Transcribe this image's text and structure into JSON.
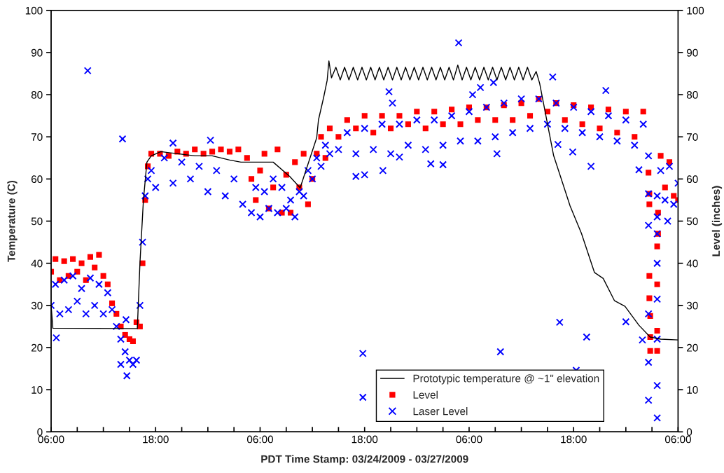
{
  "chart_data": {
    "type": "scatter",
    "xlabel": "PDT Time Stamp: 03/24/2009 - 03/27/2009",
    "ylabel": "Temperature (C)",
    "y2label": "Level (inches)",
    "xlim": [
      "2009-03-24T06:00",
      "2009-03-27T06:00"
    ],
    "xticks": [
      {
        "value": "2009-03-24T06:00",
        "label": "06:00"
      },
      {
        "value": "2009-03-24T09:00",
        "label": null
      },
      {
        "value": "2009-03-24T12:00",
        "label": null
      },
      {
        "value": "2009-03-24T15:00",
        "label": null
      },
      {
        "value": "2009-03-24T18:00",
        "label": "18:00"
      },
      {
        "value": "2009-03-24T21:00",
        "label": null
      },
      {
        "value": "2009-03-25T00:00",
        "label": null
      },
      {
        "value": "2009-03-25T03:00",
        "label": null
      },
      {
        "value": "2009-03-25T06:00",
        "label": "06:00"
      },
      {
        "value": "2009-03-25T09:00",
        "label": null
      },
      {
        "value": "2009-03-25T12:00",
        "label": null
      },
      {
        "value": "2009-03-25T15:00",
        "label": null
      },
      {
        "value": "2009-03-25T18:00",
        "label": "18:00"
      },
      {
        "value": "2009-03-25T21:00",
        "label": null
      },
      {
        "value": "2009-03-26T00:00",
        "label": null
      },
      {
        "value": "2009-03-26T03:00",
        "label": null
      },
      {
        "value": "2009-03-26T06:00",
        "label": "06:00"
      },
      {
        "value": "2009-03-26T09:00",
        "label": null
      },
      {
        "value": "2009-03-26T12:00",
        "label": null
      },
      {
        "value": "2009-03-26T15:00",
        "label": null
      },
      {
        "value": "2009-03-26T18:00",
        "label": "18:00"
      },
      {
        "value": "2009-03-26T21:00",
        "label": null
      },
      {
        "value": "2009-03-27T00:00",
        "label": null
      },
      {
        "value": "2009-03-27T03:00",
        "label": null
      },
      {
        "value": "2009-03-27T06:00",
        "label": "06:00"
      }
    ],
    "ylim": [
      0,
      100
    ],
    "yticks": [
      0,
      10,
      20,
      30,
      40,
      50,
      60,
      70,
      80,
      90,
      100
    ],
    "y2lim": [
      0,
      100
    ],
    "y2ticks": [
      0,
      10,
      20,
      30,
      40,
      50,
      60,
      70,
      80,
      90,
      100
    ],
    "grid": false,
    "legend": "bottom right",
    "series": [
      {
        "name": "Prototypic temperature @ ~1\" elevation",
        "type": "line",
        "color": "#000000",
        "marker": "none",
        "line_style": "solid",
        "x": [
          "2009-03-24T06:00",
          "2009-03-24T06:12",
          "2009-03-24T15:54",
          "2009-03-24T16:12",
          "2009-03-24T16:36",
          "2009-03-24T17:00",
          "2009-03-24T17:30",
          "2009-03-24T18:36",
          "2009-03-24T20:30",
          "2009-03-24T22:30",
          "2009-03-25T00:30",
          "2009-03-25T02:30",
          "2009-03-25T03:48",
          "2009-03-25T07:30",
          "2009-03-25T09:24",
          "2009-03-25T10:36",
          "2009-03-25T12:30",
          "2009-03-25T12:42",
          "2009-03-25T13:18",
          "2009-03-25T13:42",
          "2009-03-25T13:54",
          "2009-03-25T14:12",
          "2009-03-25T14:42",
          "2009-03-25T15:12",
          "2009-03-25T15:42",
          "2009-03-25T16:12",
          "2009-03-25T16:42",
          "2009-03-25T17:12",
          "2009-03-25T17:42",
          "2009-03-25T18:12",
          "2009-03-25T18:42",
          "2009-03-25T19:12",
          "2009-03-25T19:42",
          "2009-03-25T20:12",
          "2009-03-25T20:42",
          "2009-03-25T21:12",
          "2009-03-25T21:42",
          "2009-03-25T22:12",
          "2009-03-25T22:42",
          "2009-03-25T23:12",
          "2009-03-25T23:42",
          "2009-03-26T00:12",
          "2009-03-26T00:42",
          "2009-03-26T01:12",
          "2009-03-26T01:42",
          "2009-03-26T02:12",
          "2009-03-26T02:42",
          "2009-03-26T03:12",
          "2009-03-26T03:42",
          "2009-03-26T04:12",
          "2009-03-26T04:42",
          "2009-03-26T05:12",
          "2009-03-26T05:42",
          "2009-03-26T06:12",
          "2009-03-26T06:42",
          "2009-03-26T07:12",
          "2009-03-26T07:42",
          "2009-03-26T08:12",
          "2009-03-26T08:42",
          "2009-03-26T09:12",
          "2009-03-26T09:42",
          "2009-03-26T10:12",
          "2009-03-26T10:42",
          "2009-03-26T11:12",
          "2009-03-26T11:42",
          "2009-03-26T12:12",
          "2009-03-26T12:42",
          "2009-03-26T13:12",
          "2009-03-26T13:42",
          "2009-03-26T14:06",
          "2009-03-26T15:42",
          "2009-03-26T17:36",
          "2009-03-26T18:54",
          "2009-03-26T20:24",
          "2009-03-26T21:24",
          "2009-03-26T22:42",
          "2009-03-26T23:54",
          "2009-03-27T01:30",
          "2009-03-27T02:48",
          "2009-03-27T04:00",
          "2009-03-27T06:00"
        ],
        "values": [
          30,
          24.6,
          24.5,
          40,
          55,
          64,
          65.5,
          66.5,
          66,
          65.5,
          65.5,
          64.5,
          64,
          64,
          60.6,
          57.9,
          69.8,
          74,
          79.4,
          83.4,
          88,
          84,
          86.5,
          83.5,
          86.5,
          83.5,
          86.5,
          83.5,
          86.5,
          83.5,
          86.5,
          83.5,
          86.5,
          83.5,
          86.5,
          83.5,
          86.5,
          83.5,
          86.5,
          83.5,
          86.5,
          83.5,
          86.5,
          83.5,
          86.5,
          83.5,
          86.5,
          83.5,
          86.5,
          83.5,
          87,
          83.5,
          86.5,
          83.5,
          86.5,
          83.5,
          86.5,
          83.5,
          86.5,
          83.5,
          86.5,
          83.5,
          86.5,
          83.5,
          86.5,
          83.5,
          86.5,
          83.5,
          85.5,
          82.7,
          65.6,
          53.6,
          47.1,
          37.8,
          36.4,
          31.1,
          29.8,
          25.3,
          22.5,
          22,
          21.8
        ]
      },
      {
        "name": "Level",
        "axis": "y2",
        "color": "#ff0000",
        "marker": "square",
        "x": [
          "2009-03-24T06:00",
          "2009-03-24T06:30",
          "2009-03-24T07:00",
          "2009-03-24T07:30",
          "2009-03-24T08:00",
          "2009-03-24T08:30",
          "2009-03-24T09:00",
          "2009-03-24T09:30",
          "2009-03-24T10:00",
          "2009-03-24T10:30",
          "2009-03-24T11:00",
          "2009-03-24T11:30",
          "2009-03-24T12:00",
          "2009-03-24T12:30",
          "2009-03-24T13:00",
          "2009-03-24T13:30",
          "2009-03-24T14:00",
          "2009-03-24T14:30",
          "2009-03-24T15:00",
          "2009-03-24T15:24",
          "2009-03-24T15:48",
          "2009-03-24T16:12",
          "2009-03-24T16:30",
          "2009-03-24T16:48",
          "2009-03-24T17:06",
          "2009-03-24T17:30",
          "2009-03-24T18:30",
          "2009-03-24T19:30",
          "2009-03-24T20:30",
          "2009-03-24T21:30",
          "2009-03-24T22:30",
          "2009-03-24T23:30",
          "2009-03-25T00:30",
          "2009-03-25T01:30",
          "2009-03-25T02:30",
          "2009-03-25T03:30",
          "2009-03-25T04:30",
          "2009-03-25T05:00",
          "2009-03-25T05:30",
          "2009-03-25T06:00",
          "2009-03-25T06:30",
          "2009-03-25T07:00",
          "2009-03-25T07:30",
          "2009-03-25T08:00",
          "2009-03-25T08:30",
          "2009-03-25T09:00",
          "2009-03-25T09:30",
          "2009-03-25T10:00",
          "2009-03-25T10:30",
          "2009-03-25T11:00",
          "2009-03-25T11:30",
          "2009-03-25T12:00",
          "2009-03-25T12:30",
          "2009-03-25T13:00",
          "2009-03-25T13:30",
          "2009-03-25T14:00",
          "2009-03-25T15:00",
          "2009-03-25T16:00",
          "2009-03-25T17:00",
          "2009-03-25T18:00",
          "2009-03-25T19:00",
          "2009-03-25T20:00",
          "2009-03-25T21:00",
          "2009-03-25T22:00",
          "2009-03-25T23:00",
          "2009-03-26T00:00",
          "2009-03-26T01:00",
          "2009-03-26T02:00",
          "2009-03-26T03:00",
          "2009-03-26T04:00",
          "2009-03-26T05:00",
          "2009-03-26T06:00",
          "2009-03-26T07:00",
          "2009-03-26T08:00",
          "2009-03-26T09:00",
          "2009-03-26T10:00",
          "2009-03-26T11:00",
          "2009-03-26T12:00",
          "2009-03-26T13:00",
          "2009-03-26T14:00",
          "2009-03-26T15:00",
          "2009-03-26T16:00",
          "2009-03-26T17:00",
          "2009-03-26T18:00",
          "2009-03-26T19:00",
          "2009-03-26T20:00",
          "2009-03-26T21:00",
          "2009-03-26T22:00",
          "2009-03-26T23:00",
          "2009-03-27T00:00",
          "2009-03-27T01:00",
          "2009-03-27T02:00",
          "2009-03-27T02:36",
          "2009-03-27T02:42",
          "2009-03-27T02:42",
          "2009-03-27T02:42",
          "2009-03-27T02:42",
          "2009-03-27T02:48",
          "2009-03-27T02:48",
          "2009-03-27T02:48",
          "2009-03-27T03:36",
          "2009-03-27T03:36",
          "2009-03-27T03:36",
          "2009-03-27T03:36",
          "2009-03-27T03:42",
          "2009-03-27T03:42",
          "2009-03-27T04:00",
          "2009-03-27T04:30",
          "2009-03-27T05:00",
          "2009-03-27T05:30",
          "2009-03-27T06:00"
        ],
        "values": [
          38,
          41,
          36,
          40.5,
          37,
          41,
          38,
          40,
          36,
          41.5,
          39,
          42,
          37,
          35,
          30.5,
          28,
          25,
          23,
          22,
          21.5,
          26,
          25,
          40,
          55,
          63,
          66,
          66,
          65.5,
          66.5,
          66,
          67,
          66,
          66.5,
          67,
          66.5,
          67,
          65,
          60,
          55,
          62,
          66,
          53,
          58,
          67,
          52,
          61,
          52,
          64,
          58,
          66,
          54,
          60,
          66,
          70,
          65,
          72,
          70,
          74,
          72,
          75,
          71,
          75,
          72,
          75,
          73,
          76,
          72,
          76,
          73,
          76.5,
          73,
          77,
          74,
          77,
          74,
          77.5,
          74,
          78,
          75,
          79,
          76,
          78,
          74,
          77.5,
          73,
          77,
          72,
          76.5,
          71,
          76,
          70,
          76,
          61.5,
          56.5,
          54,
          37,
          31.7,
          27.5,
          22.5,
          19.2,
          19.2,
          24,
          35,
          44,
          47,
          52,
          65.5,
          58,
          64,
          56,
          55
        ]
      },
      {
        "name": "Laser Level",
        "axis": "y2",
        "color": "#0000ff",
        "marker": "cross",
        "x": [
          "2009-03-24T06:00",
          "2009-03-24T06:30",
          "2009-03-24T07:00",
          "2009-03-24T07:30",
          "2009-03-24T08:00",
          "2009-03-24T08:30",
          "2009-03-24T09:00",
          "2009-03-24T09:30",
          "2009-03-24T10:00",
          "2009-03-24T10:30",
          "2009-03-24T11:00",
          "2009-03-24T11:30",
          "2009-03-24T12:00",
          "2009-03-24T12:30",
          "2009-03-24T13:00",
          "2009-03-24T13:30",
          "2009-03-24T14:00",
          "2009-03-24T14:30",
          "2009-03-24T15:00",
          "2009-03-24T15:24",
          "2009-03-24T15:48",
          "2009-03-24T16:12",
          "2009-03-24T16:30",
          "2009-03-24T16:48",
          "2009-03-24T17:06",
          "2009-03-24T17:30",
          "2009-03-24T18:00",
          "2009-03-24T19:00",
          "2009-03-24T20:00",
          "2009-03-24T21:00",
          "2009-03-24T22:00",
          "2009-03-24T23:00",
          "2009-03-25T00:00",
          "2009-03-25T01:00",
          "2009-03-25T02:00",
          "2009-03-25T03:00",
          "2009-03-25T04:00",
          "2009-03-25T05:00",
          "2009-03-25T05:30",
          "2009-03-25T06:00",
          "2009-03-25T06:30",
          "2009-03-25T07:00",
          "2009-03-25T07:30",
          "2009-03-25T08:00",
          "2009-03-25T08:30",
          "2009-03-25T09:00",
          "2009-03-25T09:30",
          "2009-03-25T10:00",
          "2009-03-25T10:30",
          "2009-03-25T11:00",
          "2009-03-25T11:30",
          "2009-03-25T12:00",
          "2009-03-25T12:30",
          "2009-03-25T13:00",
          "2009-03-25T13:30",
          "2009-03-25T14:00",
          "2009-03-25T15:00",
          "2009-03-25T16:00",
          "2009-03-25T17:00",
          "2009-03-25T18:00",
          "2009-03-25T19:00",
          "2009-03-25T20:00",
          "2009-03-25T21:00",
          "2009-03-25T22:00",
          "2009-03-25T23:00",
          "2009-03-26T00:00",
          "2009-03-26T01:00",
          "2009-03-26T02:00",
          "2009-03-26T03:00",
          "2009-03-26T04:00",
          "2009-03-26T05:00",
          "2009-03-26T06:00",
          "2009-03-26T07:00",
          "2009-03-26T08:00",
          "2009-03-26T09:00",
          "2009-03-26T10:00",
          "2009-03-26T11:00",
          "2009-03-26T12:00",
          "2009-03-26T13:00",
          "2009-03-26T14:00",
          "2009-03-26T15:00",
          "2009-03-26T16:00",
          "2009-03-26T17:00",
          "2009-03-26T18:00",
          "2009-03-26T19:00",
          "2009-03-26T20:00",
          "2009-03-26T21:00",
          "2009-03-26T22:00",
          "2009-03-26T23:00",
          "2009-03-27T00:00",
          "2009-03-27T01:00",
          "2009-03-27T02:00",
          "2009-03-27T02:36",
          "2009-03-27T02:36",
          "2009-03-27T02:36",
          "2009-03-27T02:36",
          "2009-03-27T02:36",
          "2009-03-27T02:36",
          "2009-03-27T03:36",
          "2009-03-27T03:36",
          "2009-03-27T03:36",
          "2009-03-27T03:36",
          "2009-03-27T03:36",
          "2009-03-27T03:36",
          "2009-03-27T03:36",
          "2009-03-27T03:36",
          "2009-03-27T04:00",
          "2009-03-27T04:30",
          "2009-03-27T05:00",
          "2009-03-27T05:30",
          "2009-03-27T06:00",
          "2009-03-24T10:12",
          "2009-03-24T14:12",
          "2009-03-24T06:36",
          "2009-03-24T14:00",
          "2009-03-24T14:42",
          "2009-03-24T14:36",
          "2009-03-24T20:00",
          "2009-03-25T00:18",
          "2009-03-26T04:48",
          "2009-03-25T20:48",
          "2009-03-25T21:12",
          "2009-03-25T17:48",
          "2009-03-25T17:48",
          "2009-03-25T17:00",
          "2009-03-25T18:00",
          "2009-03-25T20:06",
          "2009-03-25T22:00",
          "2009-03-26T01:36",
          "2009-03-26T03:00",
          "2009-03-26T15:36",
          "2009-03-26T21:42",
          "2009-03-26T06:24",
          "2009-03-26T07:18",
          "2009-03-26T08:48",
          "2009-03-26T09:12",
          "2009-03-26T09:36",
          "2009-03-26T16:12",
          "2009-03-26T17:54",
          "2009-03-26T20:00",
          "2009-03-27T01:30",
          "2009-03-26T16:24",
          "2009-03-26T19:30",
          "2009-03-26T18:18",
          "2009-03-27T00:00",
          "2009-03-27T01:54",
          "2009-03-27T04:48"
        ],
        "values": [
          30,
          35,
          28,
          36,
          29,
          37,
          31,
          34,
          28,
          36.5,
          30,
          35,
          28,
          33,
          29,
          25,
          22,
          19,
          17,
          16,
          17,
          30,
          45,
          56,
          60,
          62,
          58,
          65,
          59,
          64,
          60,
          63,
          57,
          62,
          56,
          60,
          54,
          52,
          58,
          51,
          57,
          53,
          60,
          52,
          58,
          53,
          55,
          51,
          57,
          56,
          62,
          60,
          65,
          63,
          68,
          66,
          67,
          71,
          66,
          72,
          67,
          73,
          66,
          73,
          68,
          74,
          67,
          74,
          68,
          75,
          69,
          76,
          69,
          77,
          70,
          78,
          71,
          79,
          72,
          79,
          73,
          78,
          72,
          77,
          71,
          76,
          70,
          75,
          69,
          74,
          68,
          73,
          65.5,
          56.5,
          49,
          28,
          16.5,
          7.5,
          3.3,
          11,
          22,
          31.5,
          40,
          47,
          51,
          56,
          62,
          55,
          63,
          54,
          59,
          85.7,
          69.5,
          22.3,
          16.0,
          13.3,
          26.6,
          68.5,
          69.2,
          92.3,
          80.7,
          78,
          18.6,
          8.2,
          60.6,
          61,
          62,
          65.2,
          63.6,
          63.4,
          84.2,
          81,
          80,
          81.7,
          82.9,
          66,
          19,
          68.2,
          66.4,
          63,
          62.2,
          26,
          22.5,
          14.6,
          26.1,
          21.8,
          50
        ]
      }
    ]
  }
}
